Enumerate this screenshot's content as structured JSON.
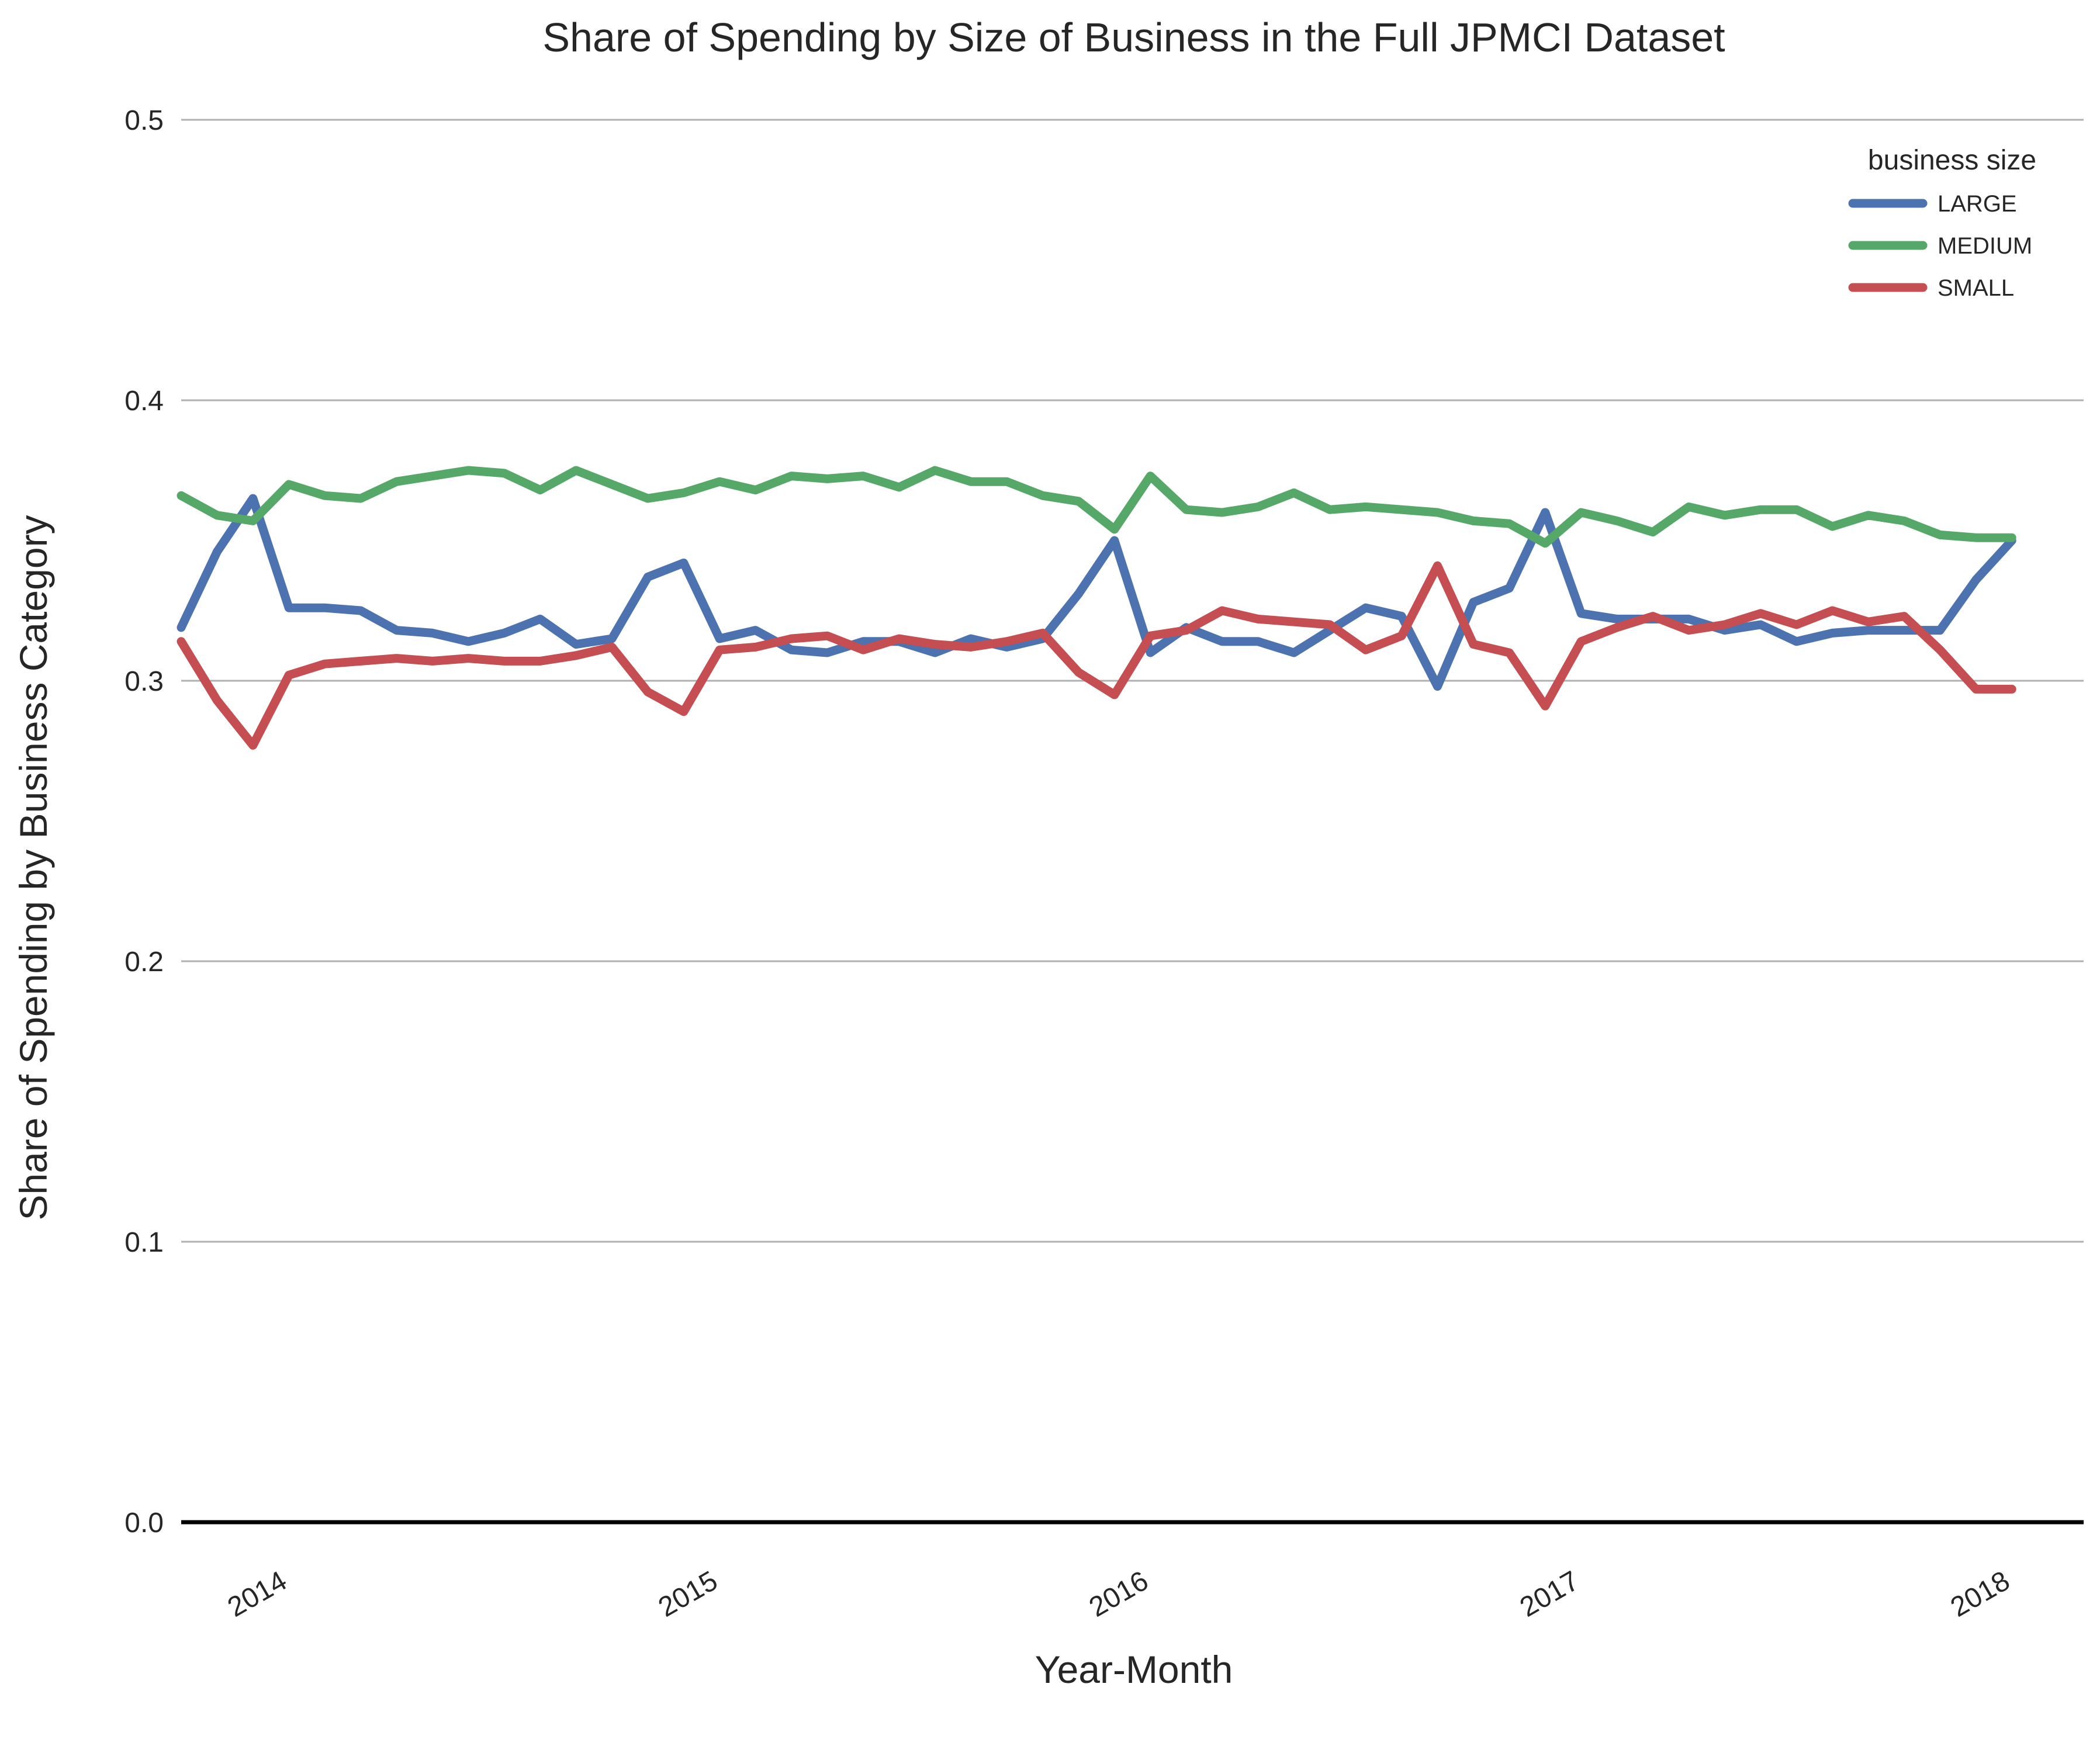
{
  "chart_data": {
    "type": "line",
    "title": "Share of Spending by Size of Business in the Full JPMCI Dataset",
    "xlabel": "Year-Month",
    "ylabel": "Share of Spending by Business Category",
    "ylim": [
      0,
      0.5
    ],
    "yticks": [
      "0.0",
      "0.1",
      "0.2",
      "0.3",
      "0.4",
      "0.5"
    ],
    "xlim": [
      "2013-10",
      "2018-03"
    ],
    "xticks": [
      {
        "label": "2014",
        "x": "2014-01"
      },
      {
        "label": "2015",
        "x": "2015-01"
      },
      {
        "label": "2016",
        "x": "2016-01"
      },
      {
        "label": "2017",
        "x": "2017-01"
      },
      {
        "label": "2018",
        "x": "2018-01"
      }
    ],
    "grid": true,
    "legend": {
      "title": "business size",
      "position": "top-right"
    },
    "x": [
      "2013-10",
      "2013-11",
      "2013-12",
      "2014-01",
      "2014-02",
      "2014-03",
      "2014-04",
      "2014-05",
      "2014-06",
      "2014-07",
      "2014-08",
      "2014-09",
      "2014-10",
      "2014-11",
      "2014-12",
      "2015-01",
      "2015-02",
      "2015-03",
      "2015-04",
      "2015-05",
      "2015-06",
      "2015-07",
      "2015-08",
      "2015-09",
      "2015-10",
      "2015-11",
      "2015-12",
      "2016-01",
      "2016-02",
      "2016-03",
      "2016-04",
      "2016-05",
      "2016-06",
      "2016-07",
      "2016-08",
      "2016-09",
      "2016-10",
      "2016-11",
      "2016-12",
      "2017-01",
      "2017-02",
      "2017-03",
      "2017-04",
      "2017-05",
      "2017-06",
      "2017-07",
      "2017-08",
      "2017-09",
      "2017-10",
      "2017-11",
      "2017-12",
      "2018-01"
    ],
    "series": [
      {
        "name": "LARGE",
        "color": "#4c72b0",
        "values": [
          0.319,
          0.346,
          0.365,
          0.326,
          0.326,
          0.325,
          0.318,
          0.317,
          0.314,
          0.317,
          0.322,
          0.313,
          0.315,
          0.337,
          0.342,
          0.315,
          0.318,
          0.311,
          0.31,
          0.314,
          0.314,
          0.31,
          0.315,
          0.312,
          0.315,
          0.331,
          0.35,
          0.31,
          0.319,
          0.314,
          0.314,
          0.31,
          0.318,
          0.326,
          0.323,
          0.298,
          0.328,
          0.333,
          0.36,
          0.324,
          0.322,
          0.322,
          0.322,
          0.318,
          0.32,
          0.314,
          0.317,
          0.318,
          0.318,
          0.318,
          0.336,
          0.35
        ]
      },
      {
        "name": "MEDIUM",
        "color": "#55a868",
        "values": [
          0.366,
          0.359,
          0.357,
          0.37,
          0.366,
          0.365,
          0.371,
          0.373,
          0.375,
          0.374,
          0.368,
          0.375,
          0.37,
          0.365,
          0.367,
          0.371,
          0.368,
          0.373,
          0.372,
          0.373,
          0.369,
          0.375,
          0.371,
          0.371,
          0.366,
          0.364,
          0.354,
          0.373,
          0.361,
          0.36,
          0.362,
          0.367,
          0.361,
          0.362,
          0.361,
          0.36,
          0.357,
          0.356,
          0.349,
          0.36,
          0.357,
          0.353,
          0.362,
          0.359,
          0.361,
          0.361,
          0.355,
          0.359,
          0.357,
          0.352,
          0.351,
          0.351
        ]
      },
      {
        "name": "SMALL",
        "color": "#c44e52",
        "values": [
          0.314,
          0.293,
          0.277,
          0.302,
          0.306,
          0.307,
          0.308,
          0.307,
          0.308,
          0.307,
          0.307,
          0.309,
          0.312,
          0.296,
          0.289,
          0.311,
          0.312,
          0.315,
          0.316,
          0.311,
          0.315,
          0.313,
          0.312,
          0.314,
          0.317,
          0.303,
          0.295,
          0.316,
          0.318,
          0.325,
          0.322,
          0.321,
          0.32,
          0.311,
          0.316,
          0.341,
          0.313,
          0.31,
          0.291,
          0.314,
          0.319,
          0.323,
          0.318,
          0.32,
          0.324,
          0.32,
          0.325,
          0.321,
          0.323,
          0.311,
          0.297,
          0.297
        ]
      }
    ]
  }
}
